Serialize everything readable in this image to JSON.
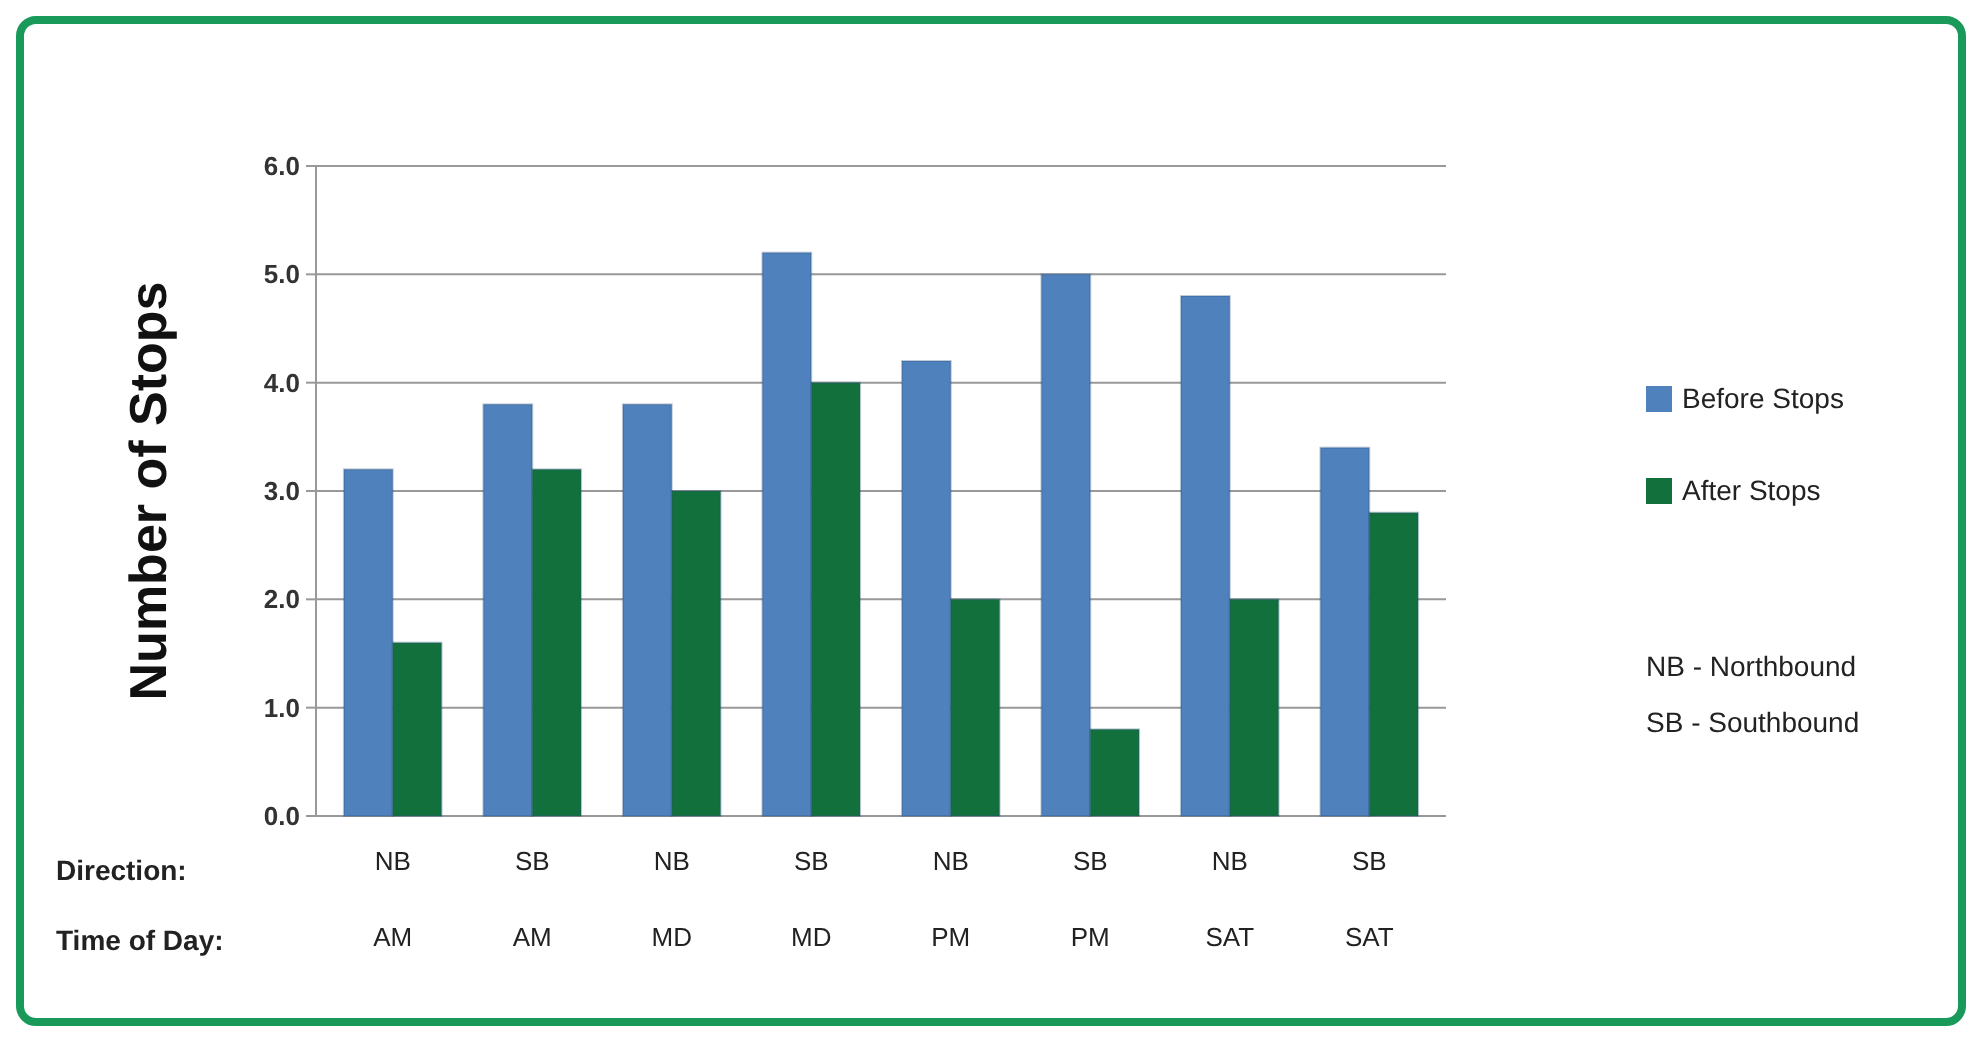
{
  "chart_data": {
    "type": "bar",
    "ylabel": "Number of Stops",
    "categories": [
      "NB\nAM",
      "SB\nAM",
      "NB\nMD",
      "SB\nMD",
      "NB\nPM",
      "SB\nPM",
      "NB\nSAT",
      "SB\nSAT"
    ],
    "series": [
      {
        "name": "Before Stops",
        "color": "#4f81bd",
        "values": [
          3.2,
          3.8,
          3.8,
          5.2,
          4.2,
          5.0,
          4.8,
          3.4
        ]
      },
      {
        "name": "After Stops",
        "color": "#11703c",
        "values": [
          1.6,
          3.2,
          3.0,
          4.0,
          2.0,
          0.8,
          2.0,
          2.8
        ]
      }
    ],
    "ylim": [
      0,
      6
    ],
    "yticks": [
      {
        "value": 0,
        "label": "0.0"
      },
      {
        "value": 1,
        "label": "1.0"
      },
      {
        "value": 2,
        "label": "2.0"
      },
      {
        "value": 3,
        "label": "3.0"
      },
      {
        "value": 4,
        "label": "4.0"
      },
      {
        "value": 5,
        "label": "5.0"
      },
      {
        "value": 6,
        "label": "6.0"
      }
    ],
    "grid": "y",
    "legend": "right",
    "annotations": [
      "Direction:",
      "Time of Day:",
      "NB - Northbound",
      "SB - Southbound"
    ]
  }
}
